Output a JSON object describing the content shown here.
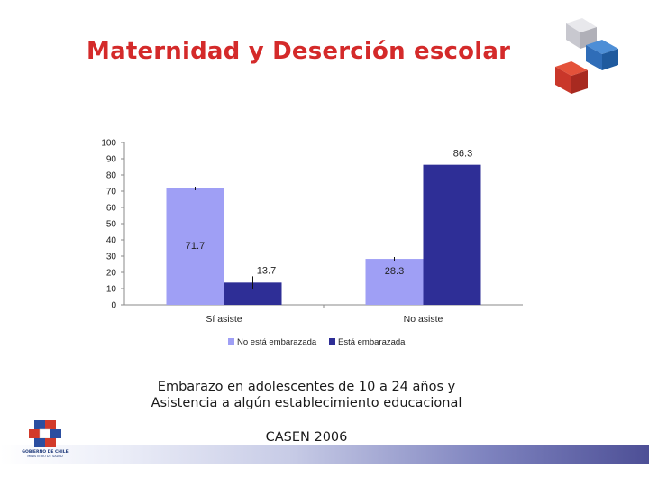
{
  "title": "Maternidad y Deserción escolar",
  "caption_line1": "Embarazo en adolescentes de 10 a 24 años y",
  "caption_line2": "Asistencia a algún establecimiento educacional",
  "source": "CASEN 2006",
  "logo": {
    "line1": "GOBIERNO DE CHILE",
    "line2": "MINISTERIO DE SALUD"
  },
  "colors": {
    "title": "#d42a2a",
    "series1": "#9f9ff5",
    "series2": "#2e2e96"
  },
  "chart_data": {
    "type": "bar",
    "title": "",
    "xlabel": "",
    "ylabel": "",
    "categories": [
      "Sí asiste",
      "No asiste"
    ],
    "series": [
      {
        "name": "No está embarazada",
        "values": [
          71.7,
          28.3
        ],
        "data_labels": [
          "71.7",
          "28.3"
        ],
        "color": "#9f9ff5"
      },
      {
        "name": "Está embarazada",
        "values": [
          13.7,
          86.3
        ],
        "data_labels": [
          "13.7",
          "86.3"
        ],
        "color": "#2e2e96"
      }
    ],
    "ylim": [
      0,
      100
    ],
    "yticks": [
      0,
      10,
      20,
      30,
      40,
      50,
      60,
      70,
      80,
      90,
      100
    ],
    "error_bars": true,
    "grid": false,
    "legend_position": "bottom"
  }
}
